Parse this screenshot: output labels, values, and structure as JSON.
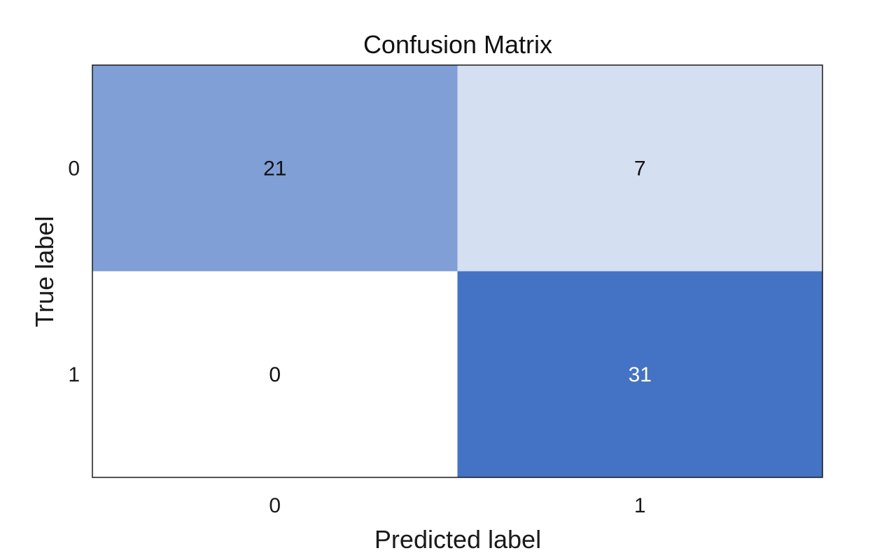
{
  "chart_data": {
    "type": "heatmap",
    "title": "Confusion Matrix",
    "xlabel": "Predicted label",
    "ylabel": "True label",
    "x_categories": [
      "0",
      "1"
    ],
    "y_categories": [
      "0",
      "1"
    ],
    "matrix": [
      [
        21,
        7
      ],
      [
        0,
        31
      ]
    ],
    "colormap": {
      "low": "#ffffff",
      "high": "#4472c4"
    },
    "text_colors": {
      "dark": "#111111",
      "light": "#ffffff"
    },
    "frame_color": "#1a1a1a",
    "grid": false,
    "colorbar": false
  }
}
